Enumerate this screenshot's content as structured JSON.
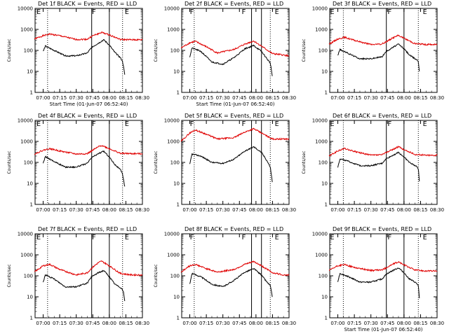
{
  "chart_data": [
    {
      "type": "line",
      "title": "Det 1f BLACK = Events, RED = LLD",
      "xlabel": "Start Time (01-Jun-07 06:52:40)",
      "ylabel": "Counts/sec",
      "scale": "log",
      "ylim": [
        1,
        10000
      ],
      "xlim": [
        "06:52:40",
        "08:30"
      ],
      "x_ticks": [
        "07:00",
        "07:15",
        "07:30",
        "07:45",
        "08:00",
        "08:15",
        "08:30"
      ],
      "y_ticks": [
        "1",
        "10",
        "100",
        "1000",
        "10000"
      ],
      "markers": [
        {
          "label": "E",
          "time": "06:54"
        },
        {
          "label": "F",
          "time": "07:44"
        },
        {
          "label": "E",
          "time": "08:14"
        }
      ],
      "dotted_lines": [
        "07:04",
        "08:12"
      ],
      "solid_lines": [
        "07:44",
        "08:00"
      ],
      "series": [
        {
          "color": "#e00000",
          "times": [
            "06:52",
            "07:00",
            "07:06",
            "07:15",
            "07:30",
            "07:40",
            "07:45",
            "07:50",
            "07:53",
            "08:00",
            "08:10",
            "08:20",
            "08:30"
          ],
          "values": [
            350,
            500,
            600,
            500,
            330,
            340,
            500,
            620,
            720,
            550,
            330,
            320,
            320
          ]
        },
        {
          "color": "#000000",
          "times": [
            "07:00",
            "07:02",
            "07:10",
            "07:20",
            "07:30",
            "07:40",
            "07:44",
            "07:50",
            "07:55",
            "08:00",
            "08:05",
            "08:10",
            "08:12",
            "08:13",
            "08:14"
          ],
          "values": [
            90,
            160,
            100,
            55,
            55,
            75,
            140,
            220,
            320,
            180,
            80,
            45,
            30,
            15,
            7
          ]
        }
      ]
    },
    {
      "type": "line",
      "title": "Det 2f BLACK = Events, RED = LLD",
      "xlabel": "Start Time (01-Jun-07 06:52:40)",
      "ylabel": "Counts/sec",
      "scale": "log",
      "ylim": [
        1,
        10000
      ],
      "xlim": [
        "06:52:40",
        "08:30"
      ],
      "x_ticks": [
        "07:00",
        "07:15",
        "07:30",
        "07:45",
        "08:00",
        "08:15",
        "08:30"
      ],
      "y_ticks": [
        "1",
        "10",
        "100",
        "1000",
        "10000"
      ],
      "markers": [
        {
          "label": "F",
          "time": "07:00"
        },
        {
          "label": "F",
          "time": "07:47"
        },
        {
          "label": "E",
          "time": "08:17"
        }
      ],
      "dotted_lines": [
        "07:04",
        "08:13"
      ],
      "solid_lines": [
        "07:56",
        "08:05"
      ],
      "series": [
        {
          "color": "#e00000",
          "times": [
            "06:52",
            "07:00",
            "07:05",
            "07:15",
            "07:25",
            "07:40",
            "07:50",
            "07:58",
            "08:05",
            "08:15",
            "08:25",
            "08:30"
          ],
          "values": [
            130,
            230,
            270,
            150,
            75,
            110,
            200,
            280,
            160,
            70,
            60,
            55
          ]
        },
        {
          "color": "#000000",
          "times": [
            "07:00",
            "07:02",
            "07:10",
            "07:20",
            "07:30",
            "07:40",
            "07:50",
            "07:58",
            "08:05",
            "08:10",
            "08:13",
            "08:14",
            "08:15"
          ],
          "values": [
            50,
            130,
            90,
            28,
            22,
            45,
            120,
            170,
            90,
            40,
            25,
            12,
            5
          ]
        }
      ]
    },
    {
      "type": "line",
      "title": "Det 3f BLACK = Events, RED = LLD",
      "xlabel": "",
      "ylabel": "Counts/sec",
      "scale": "log",
      "ylim": [
        1,
        10000
      ],
      "xlim": [
        "06:52:40",
        "08:30"
      ],
      "x_ticks": [
        "07:00",
        "07:15",
        "07:30",
        "07:45",
        "08:00",
        "08:15",
        "08:30"
      ],
      "y_ticks": [
        "1",
        "10",
        "100",
        "1000",
        "10000"
      ],
      "markers": [
        {
          "label": "E",
          "time": "06:53"
        },
        {
          "label": "F",
          "time": "07:45"
        },
        {
          "label": "E",
          "time": "08:17"
        }
      ],
      "dotted_lines": [
        "07:05",
        "08:13"
      ],
      "solid_lines": [
        "07:44",
        "08:00"
      ],
      "series": [
        {
          "color": "#e00000",
          "times": [
            "06:52",
            "07:00",
            "07:06",
            "07:15",
            "07:30",
            "07:40",
            "07:45",
            "07:50",
            "07:55",
            "08:00",
            "08:10",
            "08:20",
            "08:30"
          ],
          "values": [
            200,
            350,
            420,
            300,
            190,
            200,
            280,
            400,
            520,
            380,
            210,
            190,
            190
          ]
        },
        {
          "color": "#000000",
          "times": [
            "07:00",
            "07:02",
            "07:10",
            "07:20",
            "07:30",
            "07:40",
            "07:44",
            "07:50",
            "07:55",
            "08:00",
            "08:05",
            "08:10",
            "08:12",
            "08:13",
            "08:14"
          ],
          "values": [
            60,
            110,
            70,
            40,
            40,
            50,
            90,
            140,
            200,
            120,
            60,
            40,
            35,
            30,
            10
          ]
        }
      ]
    },
    {
      "type": "line",
      "title": "Det 4f BLACK = Events, RED = LLD",
      "xlabel": "",
      "ylabel": "Counts/sec",
      "scale": "log",
      "ylim": [
        1,
        10000
      ],
      "xlim": [
        "06:52:40",
        "08:30"
      ],
      "x_ticks": [
        "07:00",
        "07:15",
        "07:30",
        "07:45",
        "08:00",
        "08:15",
        "08:30"
      ],
      "y_ticks": [
        "1",
        "10",
        "100",
        "1000",
        "10000"
      ],
      "markers": [
        {
          "label": "E",
          "time": "06:54"
        },
        {
          "label": "F",
          "time": "07:44"
        },
        {
          "label": "E",
          "time": "08:14"
        }
      ],
      "dotted_lines": [
        "07:04",
        "08:12"
      ],
      "solid_lines": [
        "07:44",
        "08:00"
      ],
      "series": [
        {
          "color": "#e00000",
          "times": [
            "06:52",
            "07:00",
            "07:06",
            "07:15",
            "07:30",
            "07:40",
            "07:45",
            "07:50",
            "07:53",
            "08:00",
            "08:10",
            "08:20",
            "08:30"
          ],
          "values": [
            250,
            380,
            450,
            350,
            250,
            260,
            380,
            550,
            650,
            450,
            270,
            260,
            260
          ]
        },
        {
          "color": "#000000",
          "times": [
            "07:00",
            "07:02",
            "07:10",
            "07:20",
            "07:30",
            "07:40",
            "07:44",
            "07:50",
            "07:55",
            "08:00",
            "08:05",
            "08:10",
            "08:12",
            "08:13",
            "08:14"
          ],
          "values": [
            90,
            190,
            110,
            60,
            60,
            90,
            170,
            260,
            340,
            180,
            80,
            45,
            28,
            14,
            7
          ]
        }
      ]
    },
    {
      "type": "line",
      "title": "Det 5f BLACK = Events, RED = LLD",
      "xlabel": "",
      "ylabel": "Counts/sec",
      "scale": "log",
      "ylim": [
        1,
        10000
      ],
      "xlim": [
        "06:52:40",
        "08:30"
      ],
      "x_ticks": [
        "07:00",
        "07:15",
        "07:30",
        "07:45",
        "08:00",
        "08:15",
        "08:30"
      ],
      "y_ticks": [
        "1",
        "10",
        "100",
        "1000",
        "10000"
      ],
      "markers": [
        {
          "label": "F",
          "time": "07:00"
        },
        {
          "label": "F",
          "time": "07:47"
        },
        {
          "label": "E",
          "time": "08:17"
        }
      ],
      "dotted_lines": [
        "07:04",
        "08:13"
      ],
      "solid_lines": [
        "07:56",
        "08:05"
      ],
      "series": [
        {
          "color": "#e00000",
          "times": [
            "06:52",
            "07:00",
            "07:05",
            "07:15",
            "07:25",
            "07:40",
            "07:50",
            "07:58",
            "08:05",
            "08:15",
            "08:25",
            "08:30"
          ],
          "values": [
            1000,
            2500,
            3500,
            2200,
            1300,
            1500,
            2800,
            4000,
            2500,
            1300,
            1300,
            1300
          ]
        },
        {
          "color": "#000000",
          "times": [
            "07:00",
            "07:02",
            "07:10",
            "07:20",
            "07:30",
            "07:40",
            "07:50",
            "07:58",
            "08:05",
            "08:10",
            "08:13",
            "08:14",
            "08:15"
          ],
          "values": [
            80,
            250,
            200,
            100,
            90,
            140,
            350,
            550,
            300,
            120,
            60,
            25,
            10
          ]
        }
      ]
    },
    {
      "type": "line",
      "title": "Det 6f BLACK = Events, RED = LLD",
      "xlabel": "",
      "ylabel": "Counts/sec",
      "scale": "log",
      "ylim": [
        1,
        10000
      ],
      "xlim": [
        "06:52:40",
        "08:30"
      ],
      "x_ticks": [
        "07:00",
        "07:15",
        "07:30",
        "07:45",
        "08:00",
        "08:15",
        "08:30"
      ],
      "y_ticks": [
        "1",
        "10",
        "100",
        "1000",
        "10000"
      ],
      "markers": [
        {
          "label": "E",
          "time": "06:53"
        },
        {
          "label": "F",
          "time": "07:45"
        },
        {
          "label": "E",
          "time": "08:17"
        }
      ],
      "dotted_lines": [
        "07:05",
        "08:13"
      ],
      "solid_lines": [
        "07:44",
        "08:00"
      ],
      "series": [
        {
          "color": "#e00000",
          "times": [
            "06:52",
            "07:00",
            "07:06",
            "07:15",
            "07:30",
            "07:40",
            "07:45",
            "07:50",
            "07:55",
            "08:00",
            "08:10",
            "08:20",
            "08:30"
          ],
          "values": [
            200,
            350,
            460,
            330,
            220,
            230,
            320,
            420,
            560,
            400,
            240,
            220,
            220
          ]
        },
        {
          "color": "#000000",
          "times": [
            "07:00",
            "07:02",
            "07:10",
            "07:20",
            "07:30",
            "07:40",
            "07:44",
            "07:50",
            "07:55",
            "08:00",
            "08:05",
            "08:10",
            "08:12",
            "08:13",
            "08:14"
          ],
          "values": [
            60,
            150,
            110,
            70,
            70,
            90,
            150,
            220,
            300,
            180,
            100,
            70,
            60,
            50,
            12
          ]
        }
      ]
    },
    {
      "type": "line",
      "title": "Det 7f BLACK = Events, RED = LLD",
      "xlabel": "",
      "ylabel": "Counts/sec",
      "scale": "log",
      "ylim": [
        1,
        10000
      ],
      "xlim": [
        "06:52:40",
        "08:30"
      ],
      "x_ticks": [
        "07:00",
        "07:15",
        "07:30",
        "07:45",
        "08:00",
        "08:15",
        "08:30"
      ],
      "y_ticks": [
        "1",
        "10",
        "100",
        "1000",
        "10000"
      ],
      "markers": [
        {
          "label": "E",
          "time": "06:54"
        },
        {
          "label": "F",
          "time": "07:44"
        },
        {
          "label": "E",
          "time": "08:14"
        }
      ],
      "dotted_lines": [
        "07:04",
        "08:12"
      ],
      "solid_lines": [
        "07:44",
        "08:00"
      ],
      "series": [
        {
          "color": "#e00000",
          "times": [
            "06:52",
            "07:00",
            "07:06",
            "07:15",
            "07:30",
            "07:40",
            "07:45",
            "07:50",
            "07:53",
            "08:00",
            "08:10",
            "08:20",
            "08:30"
          ],
          "values": [
            150,
            300,
            350,
            200,
            110,
            140,
            260,
            420,
            500,
            300,
            130,
            110,
            110
          ]
        },
        {
          "color": "#000000",
          "times": [
            "07:00",
            "07:02",
            "07:10",
            "07:20",
            "07:30",
            "07:40",
            "07:44",
            "07:50",
            "07:55",
            "08:00",
            "08:05",
            "08:10",
            "08:12",
            "08:13",
            "08:14"
          ],
          "values": [
            50,
            110,
            70,
            30,
            30,
            45,
            90,
            140,
            180,
            90,
            40,
            28,
            22,
            15,
            6
          ]
        }
      ]
    },
    {
      "type": "line",
      "title": "Det 8f BLACK = Events, RED = LLD",
      "xlabel": "",
      "ylabel": "Counts/sec",
      "scale": "log",
      "ylim": [
        1,
        10000
      ],
      "xlim": [
        "06:52:40",
        "08:30"
      ],
      "x_ticks": [
        "07:00",
        "07:15",
        "07:30",
        "07:45",
        "08:00",
        "08:15",
        "08:30"
      ],
      "y_ticks": [
        "1",
        "10",
        "100",
        "1000",
        "10000"
      ],
      "markers": [
        {
          "label": "F",
          "time": "07:00"
        },
        {
          "label": "F",
          "time": "07:47"
        },
        {
          "label": "E",
          "time": "08:17"
        }
      ],
      "dotted_lines": [
        "07:04",
        "08:13"
      ],
      "solid_lines": [
        "07:56",
        "08:05"
      ],
      "series": [
        {
          "color": "#e00000",
          "times": [
            "06:52",
            "07:00",
            "07:05",
            "07:15",
            "07:25",
            "07:40",
            "07:50",
            "07:58",
            "08:05",
            "08:15",
            "08:25",
            "08:30"
          ],
          "values": [
            150,
            300,
            350,
            220,
            150,
            200,
            350,
            480,
            300,
            140,
            110,
            110
          ]
        },
        {
          "color": "#000000",
          "times": [
            "07:00",
            "07:02",
            "07:10",
            "07:20",
            "07:30",
            "07:40",
            "07:50",
            "07:58",
            "08:05",
            "08:10",
            "08:13",
            "08:14",
            "08:15"
          ],
          "values": [
            40,
            130,
            90,
            40,
            30,
            60,
            150,
            220,
            110,
            50,
            35,
            18,
            8
          ]
        }
      ]
    },
    {
      "type": "line",
      "title": "Det 9f BLACK = Events, RED = LLD",
      "xlabel": "Start Time (01-Jun-07 06:52:40)",
      "ylabel": "",
      "scale": "log",
      "ylim": [
        1,
        10000
      ],
      "xlim": [
        "06:52:40",
        "08:30"
      ],
      "x_ticks": [
        "07:00",
        "07:15",
        "07:30",
        "07:45",
        "08:00",
        "08:15",
        "08:30"
      ],
      "y_ticks": [
        "1",
        "10",
        "100",
        "1000",
        "10000"
      ],
      "markers": [
        {
          "label": "E",
          "time": "06:53"
        },
        {
          "label": "F",
          "time": "07:45"
        },
        {
          "label": "E",
          "time": "08:17"
        }
      ],
      "dotted_lines": [
        "07:05",
        "08:13"
      ],
      "solid_lines": [
        "07:44",
        "08:00"
      ],
      "series": [
        {
          "color": "#e00000",
          "times": [
            "06:52",
            "07:00",
            "07:06",
            "07:15",
            "07:30",
            "07:40",
            "07:45",
            "07:50",
            "07:55",
            "08:00",
            "08:10",
            "08:20",
            "08:30"
          ],
          "values": [
            180,
            300,
            340,
            250,
            180,
            190,
            260,
            360,
            460,
            330,
            190,
            170,
            170
          ]
        },
        {
          "color": "#000000",
          "times": [
            "07:00",
            "07:02",
            "07:10",
            "07:20",
            "07:30",
            "07:40",
            "07:44",
            "07:50",
            "07:55",
            "08:00",
            "08:05",
            "08:10",
            "08:12",
            "08:13",
            "08:14"
          ],
          "values": [
            55,
            130,
            90,
            50,
            50,
            70,
            120,
            180,
            240,
            140,
            70,
            50,
            40,
            35,
            8
          ]
        }
      ]
    }
  ]
}
